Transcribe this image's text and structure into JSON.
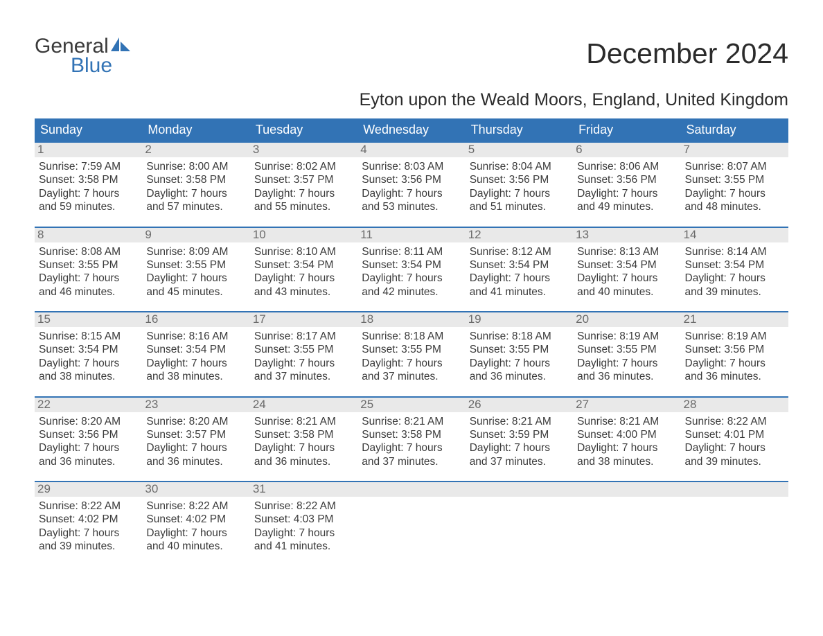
{
  "brand": {
    "word1": "General",
    "word2": "Blue"
  },
  "title": "December 2024",
  "location": "Eyton upon the Weald Moors, England, United Kingdom",
  "colors": {
    "header_bg": "#3273b5",
    "header_fg": "#ffffff",
    "daynum_bg": "#e9e9e9",
    "daynum_fg": "#6b6b6b",
    "body_fg": "#3a3a3a",
    "page_bg": "#ffffff",
    "rule": "#3273b5",
    "logo_accent": "#3273b5"
  },
  "typography": {
    "title_fontsize": 41,
    "location_fontsize": 25,
    "dayheader_fontsize": 18,
    "daynum_fontsize": 17,
    "body_fontsize": 15.5,
    "logo_fontsize": 30
  },
  "day_headers": [
    "Sunday",
    "Monday",
    "Tuesday",
    "Wednesday",
    "Thursday",
    "Friday",
    "Saturday"
  ],
  "weeks": [
    [
      {
        "n": "1",
        "sunrise": "7:59 AM",
        "sunset": "3:58 PM",
        "dl1": "Daylight: 7 hours",
        "dl2": "and 59 minutes."
      },
      {
        "n": "2",
        "sunrise": "8:00 AM",
        "sunset": "3:58 PM",
        "dl1": "Daylight: 7 hours",
        "dl2": "and 57 minutes."
      },
      {
        "n": "3",
        "sunrise": "8:02 AM",
        "sunset": "3:57 PM",
        "dl1": "Daylight: 7 hours",
        "dl2": "and 55 minutes."
      },
      {
        "n": "4",
        "sunrise": "8:03 AM",
        "sunset": "3:56 PM",
        "dl1": "Daylight: 7 hours",
        "dl2": "and 53 minutes."
      },
      {
        "n": "5",
        "sunrise": "8:04 AM",
        "sunset": "3:56 PM",
        "dl1": "Daylight: 7 hours",
        "dl2": "and 51 minutes."
      },
      {
        "n": "6",
        "sunrise": "8:06 AM",
        "sunset": "3:56 PM",
        "dl1": "Daylight: 7 hours",
        "dl2": "and 49 minutes."
      },
      {
        "n": "7",
        "sunrise": "8:07 AM",
        "sunset": "3:55 PM",
        "dl1": "Daylight: 7 hours",
        "dl2": "and 48 minutes."
      }
    ],
    [
      {
        "n": "8",
        "sunrise": "8:08 AM",
        "sunset": "3:55 PM",
        "dl1": "Daylight: 7 hours",
        "dl2": "and 46 minutes."
      },
      {
        "n": "9",
        "sunrise": "8:09 AM",
        "sunset": "3:55 PM",
        "dl1": "Daylight: 7 hours",
        "dl2": "and 45 minutes."
      },
      {
        "n": "10",
        "sunrise": "8:10 AM",
        "sunset": "3:54 PM",
        "dl1": "Daylight: 7 hours",
        "dl2": "and 43 minutes."
      },
      {
        "n": "11",
        "sunrise": "8:11 AM",
        "sunset": "3:54 PM",
        "dl1": "Daylight: 7 hours",
        "dl2": "and 42 minutes."
      },
      {
        "n": "12",
        "sunrise": "8:12 AM",
        "sunset": "3:54 PM",
        "dl1": "Daylight: 7 hours",
        "dl2": "and 41 minutes."
      },
      {
        "n": "13",
        "sunrise": "8:13 AM",
        "sunset": "3:54 PM",
        "dl1": "Daylight: 7 hours",
        "dl2": "and 40 minutes."
      },
      {
        "n": "14",
        "sunrise": "8:14 AM",
        "sunset": "3:54 PM",
        "dl1": "Daylight: 7 hours",
        "dl2": "and 39 minutes."
      }
    ],
    [
      {
        "n": "15",
        "sunrise": "8:15 AM",
        "sunset": "3:54 PM",
        "dl1": "Daylight: 7 hours",
        "dl2": "and 38 minutes."
      },
      {
        "n": "16",
        "sunrise": "8:16 AM",
        "sunset": "3:54 PM",
        "dl1": "Daylight: 7 hours",
        "dl2": "and 38 minutes."
      },
      {
        "n": "17",
        "sunrise": "8:17 AM",
        "sunset": "3:55 PM",
        "dl1": "Daylight: 7 hours",
        "dl2": "and 37 minutes."
      },
      {
        "n": "18",
        "sunrise": "8:18 AM",
        "sunset": "3:55 PM",
        "dl1": "Daylight: 7 hours",
        "dl2": "and 37 minutes."
      },
      {
        "n": "19",
        "sunrise": "8:18 AM",
        "sunset": "3:55 PM",
        "dl1": "Daylight: 7 hours",
        "dl2": "and 36 minutes."
      },
      {
        "n": "20",
        "sunrise": "8:19 AM",
        "sunset": "3:55 PM",
        "dl1": "Daylight: 7 hours",
        "dl2": "and 36 minutes."
      },
      {
        "n": "21",
        "sunrise": "8:19 AM",
        "sunset": "3:56 PM",
        "dl1": "Daylight: 7 hours",
        "dl2": "and 36 minutes."
      }
    ],
    [
      {
        "n": "22",
        "sunrise": "8:20 AM",
        "sunset": "3:56 PM",
        "dl1": "Daylight: 7 hours",
        "dl2": "and 36 minutes."
      },
      {
        "n": "23",
        "sunrise": "8:20 AM",
        "sunset": "3:57 PM",
        "dl1": "Daylight: 7 hours",
        "dl2": "and 36 minutes."
      },
      {
        "n": "24",
        "sunrise": "8:21 AM",
        "sunset": "3:58 PM",
        "dl1": "Daylight: 7 hours",
        "dl2": "and 36 minutes."
      },
      {
        "n": "25",
        "sunrise": "8:21 AM",
        "sunset": "3:58 PM",
        "dl1": "Daylight: 7 hours",
        "dl2": "and 37 minutes."
      },
      {
        "n": "26",
        "sunrise": "8:21 AM",
        "sunset": "3:59 PM",
        "dl1": "Daylight: 7 hours",
        "dl2": "and 37 minutes."
      },
      {
        "n": "27",
        "sunrise": "8:21 AM",
        "sunset": "4:00 PM",
        "dl1": "Daylight: 7 hours",
        "dl2": "and 38 minutes."
      },
      {
        "n": "28",
        "sunrise": "8:22 AM",
        "sunset": "4:01 PM",
        "dl1": "Daylight: 7 hours",
        "dl2": "and 39 minutes."
      }
    ],
    [
      {
        "n": "29",
        "sunrise": "8:22 AM",
        "sunset": "4:02 PM",
        "dl1": "Daylight: 7 hours",
        "dl2": "and 39 minutes."
      },
      {
        "n": "30",
        "sunrise": "8:22 AM",
        "sunset": "4:02 PM",
        "dl1": "Daylight: 7 hours",
        "dl2": "and 40 minutes."
      },
      {
        "n": "31",
        "sunrise": "8:22 AM",
        "sunset": "4:03 PM",
        "dl1": "Daylight: 7 hours",
        "dl2": "and 41 minutes."
      },
      null,
      null,
      null,
      null
    ]
  ],
  "labels": {
    "sunrise": "Sunrise: ",
    "sunset": "Sunset: "
  }
}
